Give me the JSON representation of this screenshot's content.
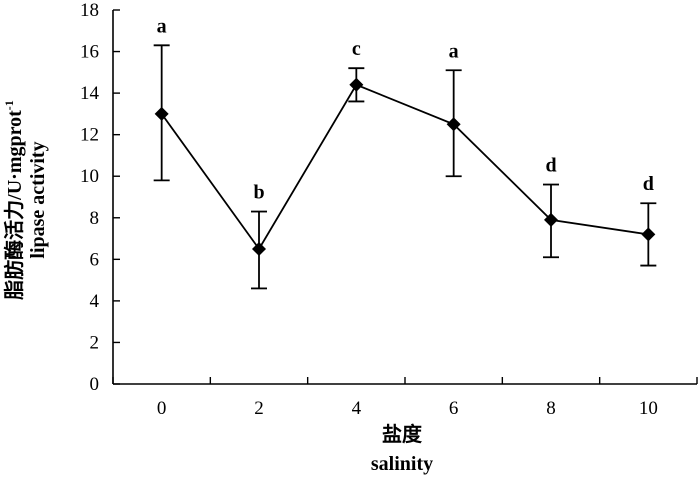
{
  "chart_data": {
    "type": "line",
    "xlabel_cn": "盐度",
    "xlabel_en": "salinity",
    "ylabel_cn": "脂肪酶活力/U·mgprot",
    "ylabel_sup": "-1",
    "ylabel_en": "lipase activity",
    "x": [
      0,
      2,
      4,
      6,
      8,
      10
    ],
    "x_tick_labels": [
      "0",
      "2",
      "4",
      "6",
      "8",
      "10"
    ],
    "y_ticks": [
      0,
      2,
      4,
      6,
      8,
      10,
      12,
      14,
      16,
      18
    ],
    "y_tick_labels": [
      "0",
      "2",
      "4",
      "6",
      "8",
      "10",
      "12",
      "14",
      "16",
      "18"
    ],
    "ylim": [
      0,
      18
    ],
    "series": [
      {
        "values": [
          13.0,
          6.5,
          14.4,
          12.5,
          7.9,
          7.2
        ],
        "error_low": [
          9.8,
          4.6,
          13.6,
          10.0,
          6.1,
          5.7
        ],
        "error_high": [
          16.3,
          8.3,
          15.2,
          15.1,
          9.6,
          8.7
        ],
        "marker": "diamond",
        "color": "#000000"
      }
    ],
    "significance_labels": [
      "a",
      "b",
      "c",
      "a",
      "d",
      "d"
    ],
    "grid": false
  }
}
